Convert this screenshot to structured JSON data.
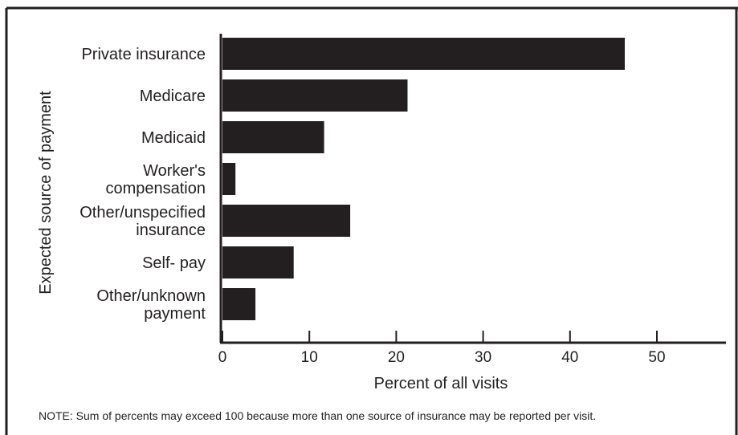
{
  "chart_data": {
    "type": "bar",
    "orientation": "horizontal",
    "categories": [
      [
        "Private insurance"
      ],
      [
        "Medicare"
      ],
      [
        "Medicaid"
      ],
      [
        "Worker's",
        "compensation"
      ],
      [
        "Other/unspecified",
        "insurance"
      ],
      [
        "Self- pay"
      ],
      [
        "Other/unknown",
        "payment"
      ]
    ],
    "values": [
      46.3,
      21.3,
      11.7,
      1.5,
      14.7,
      8.2,
      3.8
    ],
    "xlabel": "Percent of all visits",
    "ylabel": "Expected source of payment",
    "xlim": [
      0,
      58
    ],
    "xticks": [
      0,
      10,
      20,
      30,
      40,
      50
    ],
    "grid": false,
    "bar_color": "#231f20"
  },
  "note": "NOTE:  Sum of percents may exceed 100 because more than one source of insurance may be reported per visit."
}
